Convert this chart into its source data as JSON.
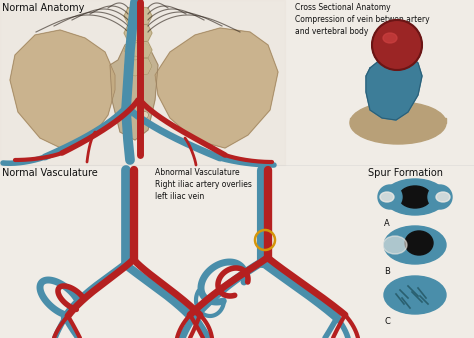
{
  "bg_color": "#f0ece6",
  "title_normal_anatomy": "Normal Anatomy",
  "title_normal_vasc": "Normal Vasculature",
  "title_abnormal_vasc": "Abnormal Vasculature\nRight iliac artery overlies\nleft iliac vein",
  "title_cross_section": "Cross Sectional Anatomy\nCompression of vein betwen artery\nand vertebral body",
  "title_spur": "Spur Formation",
  "spur_labels": [
    "A",
    "B",
    "C"
  ],
  "artery_color": "#b52020",
  "vein_color": "#4a8eaa",
  "bone_color": "#c8b89a",
  "bone_color2": "#a89070",
  "dark_color": "#111111",
  "text_color": "#111111",
  "font_size_label": 6.5,
  "font_size_title": 7.0,
  "spur_blue": "#4a8eaa",
  "cross_vein_blue": "#3a7a95",
  "cross_artery_red": "#9b2020",
  "vertebra_color": "#b8a078"
}
